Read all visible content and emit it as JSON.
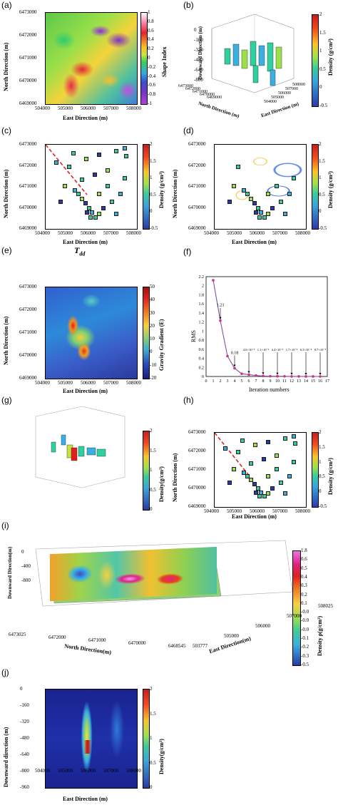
{
  "panels": {
    "a": {
      "label": "(a)",
      "colorbar": [
        "1",
        "0.8",
        "0.6",
        "0.4",
        "0.2",
        "0",
        "-0.2",
        "-0.4",
        "-0.6",
        "-0.8",
        "-1"
      ],
      "cb_title": "Shape Index",
      "xlabel": "East Direction (m)",
      "ylabel": "North Direction (m)",
      "xticks": [
        "504000",
        "505000",
        "506000",
        "507000",
        "508000"
      ],
      "yticks": [
        "6473000",
        "6472000",
        "6471000",
        "6470000",
        "6469000"
      ]
    },
    "b": {
      "label": "(b)",
      "cb": [
        "2",
        "1.5",
        "1",
        "0.5",
        "0",
        "-0.5"
      ],
      "cb_title": "Density (g/cm³)",
      "zlabel": "Downward Direction (m)",
      "zticks": [
        "0",
        "-160",
        "-320",
        "-480",
        "-640",
        "-800"
      ],
      "yticks": [
        "6473000",
        "6472000",
        "6471000",
        "6470000",
        "6469000"
      ],
      "xticks": [
        "504000",
        "505000",
        "506000",
        "507000",
        "508000"
      ],
      "ylabel": "North Direction (m)",
      "xlabel": "East Direction (m)"
    },
    "c": {
      "label": "(c)",
      "cb": [
        "2",
        "1.5",
        "1",
        "0.5",
        "0",
        "-0.5"
      ],
      "cb_title": "Density (g/cm³)"
    },
    "d": {
      "label": "(d)",
      "cb": [
        "2",
        "1.5",
        "1",
        "0.5",
        "0",
        "-0.5"
      ],
      "cb_title": "Density (g/cm³)"
    },
    "e": {
      "label": "(e)",
      "title": "T",
      "title_sub": "dd",
      "cb": [
        "50",
        "40",
        "30",
        "20",
        "10",
        "0",
        "-10",
        "-20"
      ],
      "cb_title": "Gravity Gradient (E)"
    },
    "f": {
      "label": "(f)",
      "ylabel": "RMS",
      "xlabel": "Iteration numbers",
      "yticks": [
        "2.2",
        "2",
        "1.8",
        "1.6",
        "1.4",
        "1.2",
        "1",
        "0.8",
        "0.6",
        "0.4",
        "0.2",
        "0"
      ],
      "xticks": [
        "0",
        "1",
        "2",
        "3",
        "4",
        "5",
        "6",
        "7",
        "8",
        "9",
        "10",
        "11",
        "12",
        "13",
        "14",
        "15",
        "16",
        "17"
      ],
      "annotations": [
        "1.23",
        "0.18",
        "4.0×10⁻²",
        "1.1×10⁻²",
        "4.4×10⁻³",
        "1.7×10⁻³",
        "6.3×10⁻⁴",
        "8.7×10⁻⁵"
      ]
    },
    "g": {
      "label": "(g)",
      "cb": [
        "2",
        "1.5",
        "1",
        "0.5",
        "0"
      ],
      "cb_title": "Density(g/cm³)"
    },
    "h": {
      "label": "(h)",
      "cb": [
        "2",
        "1.5",
        "1",
        "0.5",
        "0",
        "-0.5"
      ],
      "cb_title": "Density (g/cm³)"
    },
    "i": {
      "label": "(i)",
      "cb": [
        "1.8",
        "0.6",
        "0.5",
        "0.4",
        "0.3",
        "0.2",
        "0.1",
        "-0.0",
        "-0.0",
        "-0.0",
        "-0.1",
        "-0.2",
        "-0.3",
        "-0.5"
      ],
      "cb_title": "Density ρ(g/cm³)",
      "zticks": [
        "0",
        "-400",
        "-800"
      ],
      "zlabel": "Downward Direction(m)",
      "nticks": [
        "6473025",
        "6472000",
        "6471000",
        "6470000",
        "6468545"
      ],
      "eticks": [
        "503777",
        "505000",
        "506000",
        "507000",
        "508025"
      ],
      "nlabel": "North Direction(m)",
      "elabel": "East Direction(m)"
    },
    "j": {
      "label": "(j)",
      "cb": [
        "2",
        "1.5",
        "1",
        "0.5",
        "0"
      ],
      "cb_title": "Density(g/cm³)",
      "xlabel": "East Direction (m)",
      "ylabel": "Downward direction (m)",
      "yticks": [
        "0",
        "-160",
        "-320",
        "-480",
        "-640",
        "-800",
        "-960"
      ],
      "xticks": [
        "504000",
        "505000",
        "506000",
        "507000",
        "508000"
      ]
    }
  },
  "shared": {
    "xlabel": "East Direction (m)",
    "ylabel": "North Direction (m)",
    "xticks": [
      "504000",
      "505000",
      "506000",
      "507000",
      "508000"
    ],
    "yticks": [
      "6473000",
      "6472000",
      "6471000",
      "6470000",
      "6469000"
    ]
  },
  "chart_data": {
    "type": "line",
    "title": "",
    "xlabel": "Iteration numbers",
    "ylabel": "RMS",
    "x": [
      1,
      2,
      3,
      4,
      5,
      6,
      7,
      8,
      9,
      10,
      11,
      12,
      13,
      14,
      15,
      16
    ],
    "values": [
      2.12,
      1.23,
      0.45,
      0.18,
      0.06,
      0.04,
      0.02,
      0.011,
      0.006,
      0.0044,
      0.003,
      0.0017,
      0.001,
      0.00063,
      0.0002,
      8.7e-05
    ],
    "xlim": [
      0,
      17
    ],
    "ylim": [
      0,
      2.2
    ],
    "colors": {
      "line": "#7b52a8",
      "marker": "#d6307a"
    }
  }
}
